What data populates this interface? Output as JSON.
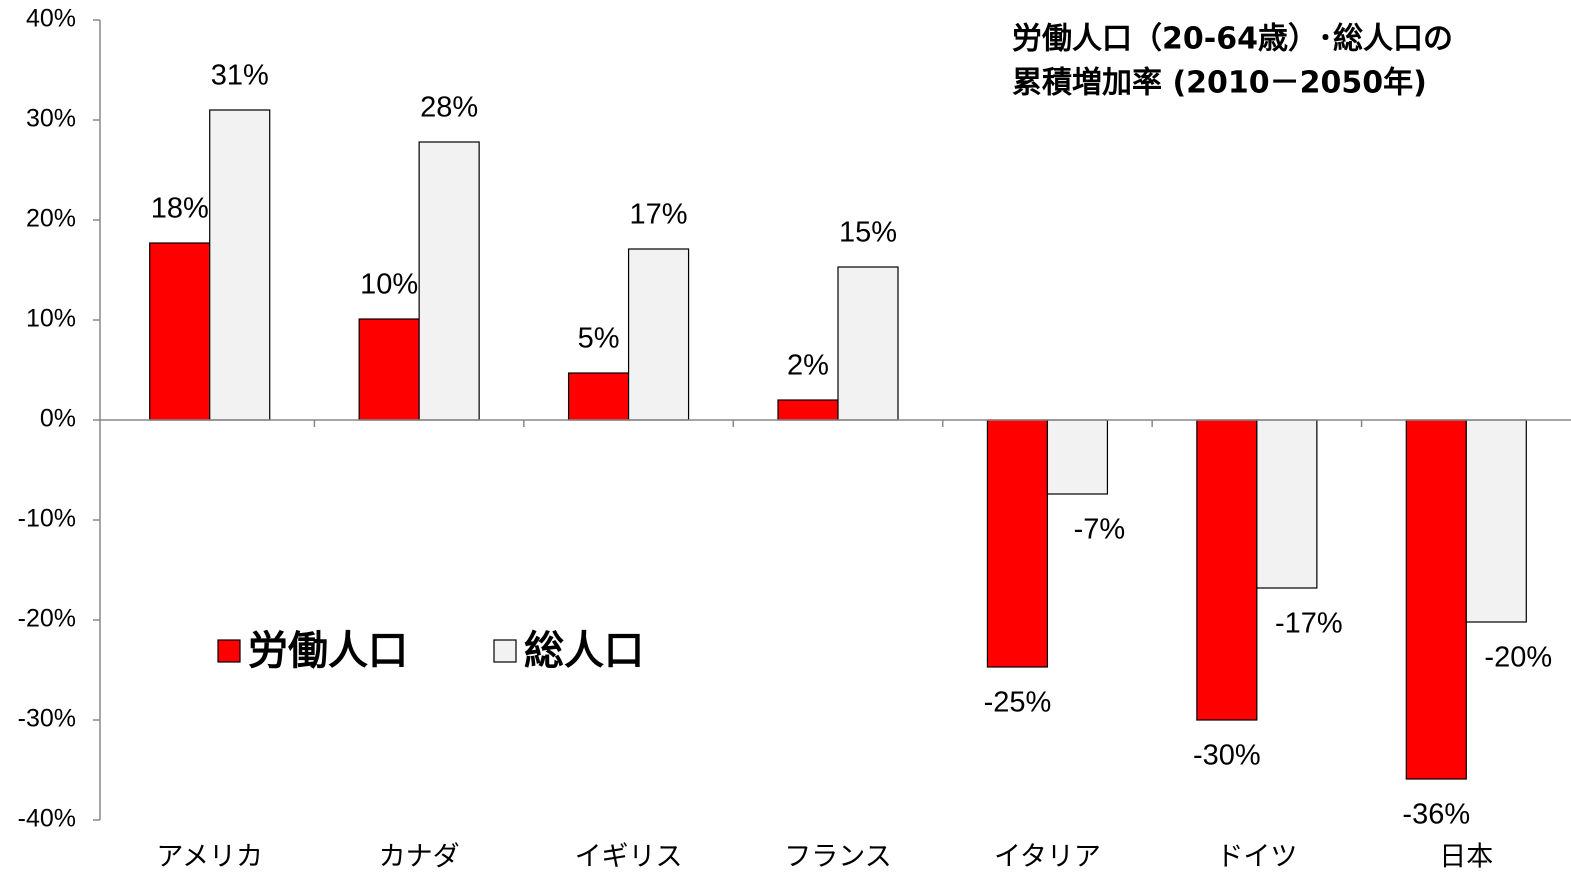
{
  "chart_data": {
    "type": "bar",
    "title": [
      "労働人口（20-64歳）･総人口の",
      "累積増加率 (2010－2050年)"
    ],
    "categories": [
      "アメリカ",
      "カナダ",
      "イギリス",
      "フランス",
      "イタリア",
      "ドイツ",
      "日本"
    ],
    "series": [
      {
        "name": "労働人口",
        "color": "#ff0000",
        "values": [
          17.7,
          10.1,
          4.7,
          2.0,
          -24.7,
          -30.0,
          -35.9
        ],
        "value_labels": [
          "18%",
          "10%",
          "5%",
          "2%",
          "-25%",
          "-30%",
          "-36%"
        ]
      },
      {
        "name": "総人口",
        "color": "#f2f2f2",
        "values": [
          31.0,
          27.8,
          17.1,
          15.3,
          -7.4,
          -16.8,
          -20.2
        ],
        "value_labels": [
          "31%",
          "28%",
          "17%",
          "15%",
          "-7%",
          "-17%",
          "-20%"
        ]
      }
    ],
    "ylim": [
      -40,
      40
    ],
    "yticks": [
      {
        "value": -40,
        "label": "-40%"
      },
      {
        "value": -30,
        "label": "-30%"
      },
      {
        "value": -20,
        "label": "-20%"
      },
      {
        "value": -10,
        "label": "-10%"
      },
      {
        "value": 0,
        "label": "0%"
      },
      {
        "value": 10,
        "label": "10%"
      },
      {
        "value": 20,
        "label": "20%"
      },
      {
        "value": 30,
        "label": "30%"
      },
      {
        "value": 40,
        "label": "40%"
      }
    ]
  }
}
